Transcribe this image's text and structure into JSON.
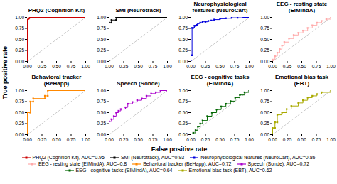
{
  "chart_data": [
    {
      "type": "line",
      "title": "PHQ2 (Cognition Kit)",
      "xlabel": "False positive rate",
      "ylabel": "True positive rate",
      "x": [
        0.0,
        0.0,
        0.02,
        0.04,
        1.0
      ],
      "series": [
        {
          "name": "PHQ2 (Cognition Kit), AUC=0.95",
          "color": "#cc0000",
          "type": "step",
          "marker": "square",
          "values": [
            0.0,
            0.95,
            0.97,
            1.0,
            1.0
          ]
        }
      ],
      "xlim": [
        0,
        1
      ],
      "ylim": [
        0,
        1
      ],
      "xticks": [
        {
          "value": 0,
          "label": "0.00"
        },
        0.25,
        {
          "value": 0.5,
          "label": "0.50"
        },
        0.75,
        {
          "value": 1,
          "label": "1.00"
        }
      ],
      "yticks": [
        {
          "value": 0,
          "label": "0.00"
        },
        0.25,
        {
          "value": 0.5,
          "label": "0.50"
        },
        0.75,
        {
          "value": 1,
          "label": "1.00"
        }
      ],
      "grid": false,
      "legend": "bottom"
    },
    {
      "type": "line",
      "title": "SMI (Neurotrack)",
      "xlabel": "False positive rate",
      "ylabel": "True positive rate",
      "x": [
        0.0,
        0.0,
        0.04,
        0.04,
        0.12,
        0.12,
        1.0
      ],
      "series": [
        {
          "name": "SMI (Neurotrack), AUC=0.93",
          "color": "#000000",
          "type": "step",
          "marker": "square",
          "values": [
            0.0,
            0.88,
            0.88,
            0.94,
            0.94,
            1.0,
            1.0
          ]
        }
      ],
      "xlim": [
        0,
        1
      ],
      "ylim": [
        0,
        1
      ],
      "xticks": [
        {
          "value": 0,
          "label": "0.00"
        },
        0.25,
        {
          "value": 0.5,
          "label": "0.50"
        },
        0.75,
        {
          "value": 1,
          "label": "1.00"
        }
      ],
      "yticks": [
        {
          "value": 0,
          "label": "0.00"
        },
        0.25,
        {
          "value": 0.5,
          "label": "0.50"
        },
        0.75,
        {
          "value": 1,
          "label": "1.00"
        }
      ],
      "grid": false,
      "legend": "bottom"
    },
    {
      "type": "line",
      "title": "Neurophysiological\nfeatures (NeuroCart)",
      "xlabel": "False positive rate",
      "ylabel": "True positive rate",
      "x": [
        0.0,
        0.0,
        0.02,
        0.02,
        0.04,
        0.06,
        0.08,
        0.1,
        0.12,
        0.16,
        0.2,
        0.25,
        0.3,
        0.35,
        0.4,
        0.5,
        0.6,
        0.7,
        0.8,
        0.9,
        1.0
      ],
      "series": [
        {
          "name": "Neurophysiological features (NeuroCart), AUC=0.86",
          "color": "#0000dd",
          "type": "step",
          "marker": "square",
          "values": [
            0.0,
            0.14,
            0.14,
            0.76,
            0.76,
            0.81,
            0.81,
            0.83,
            0.86,
            0.88,
            0.9,
            0.9,
            0.92,
            0.93,
            0.95,
            0.97,
            0.98,
            0.99,
            0.99,
            1.0,
            1.0
          ]
        }
      ],
      "xlim": [
        0,
        1
      ],
      "ylim": [
        0,
        1
      ],
      "xticks": [
        {
          "value": 0,
          "label": "0.00"
        },
        0.25,
        {
          "value": 0.5,
          "label": "0.50"
        },
        0.75,
        {
          "value": 1,
          "label": "1.00"
        }
      ],
      "yticks": [
        {
          "value": 0,
          "label": "0.00"
        },
        0.25,
        {
          "value": 0.5,
          "label": "0.50"
        },
        0.75,
        {
          "value": 1,
          "label": "1.00"
        }
      ],
      "grid": false,
      "legend": "bottom"
    },
    {
      "type": "line",
      "title": "EEG - resting state\n(EIMindA)",
      "xlabel": "False positive rate",
      "ylabel": "True positive rate",
      "x": [
        0.0,
        0.0,
        0.04,
        0.08,
        0.12,
        0.16,
        0.2,
        0.28,
        0.36,
        0.44,
        0.52,
        0.6,
        0.68,
        0.76,
        0.84,
        0.92,
        1.0
      ],
      "series": [
        {
          "name": "EEG - resting state (EIMindA), AUC=0.8",
          "color": "#ffaaaa",
          "type": "step",
          "marker": "square",
          "values": [
            0.0,
            0.04,
            0.12,
            0.2,
            0.28,
            0.36,
            0.44,
            0.52,
            0.6,
            0.65,
            0.7,
            0.76,
            0.82,
            0.88,
            0.92,
            0.96,
            1.0
          ]
        }
      ],
      "xlim": [
        0,
        1
      ],
      "ylim": [
        0,
        1
      ],
      "xticks": [
        {
          "value": 0,
          "label": "0.00"
        },
        0.25,
        {
          "value": 0.5,
          "label": "0.50"
        },
        0.75,
        {
          "value": 1,
          "label": "1.00"
        }
      ],
      "yticks": [
        {
          "value": 0,
          "label": "0.00"
        },
        0.25,
        {
          "value": 0.5,
          "label": "0.50"
        },
        0.75,
        {
          "value": 1,
          "label": "1.00"
        }
      ],
      "grid": false,
      "legend": "bottom"
    },
    {
      "type": "line",
      "title": "Behavioral tracker\n(BeHapp)",
      "xlabel": "False positive rate",
      "ylabel": "True positive rate",
      "x": [
        0.0,
        0.0,
        0.0,
        0.05,
        0.05,
        0.1,
        0.1,
        0.3,
        0.3,
        0.35,
        0.35,
        1.0
      ],
      "series": [
        {
          "name": "Behavioral tracker (BeHapp), AUC=0.72",
          "color": "#ff8800",
          "type": "step",
          "marker": "square",
          "values": [
            0.0,
            0.4,
            0.5,
            0.5,
            0.75,
            0.75,
            0.82,
            0.82,
            0.88,
            0.88,
            1.0,
            1.0
          ]
        }
      ],
      "xlim": [
        0,
        1
      ],
      "ylim": [
        0,
        1
      ],
      "xticks": [
        {
          "value": 0,
          "label": "0.00"
        },
        0.25,
        {
          "value": 0.5,
          "label": "0.50"
        },
        0.75,
        {
          "value": 1,
          "label": "1.00"
        }
      ],
      "yticks": [
        {
          "value": 0,
          "label": "0.00"
        },
        0.25,
        {
          "value": 0.5,
          "label": "0.50"
        },
        0.75,
        {
          "value": 1,
          "label": "1.00"
        }
      ],
      "grid": false,
      "legend": "bottom"
    },
    {
      "type": "line",
      "title": "Speech (Sonde)",
      "xlabel": "False positive rate",
      "ylabel": "True positive rate",
      "x": [
        0.0,
        0.0,
        0.04,
        0.08,
        0.12,
        0.16,
        0.2,
        0.28,
        0.32,
        0.4,
        0.48,
        0.56,
        0.64,
        0.72,
        0.8,
        0.88,
        1.0
      ],
      "series": [
        {
          "name": "Speech (Sonde), AUC=0.72",
          "color": "#aa00cc",
          "type": "step",
          "marker": "square",
          "values": [
            0.0,
            0.3,
            0.35,
            0.42,
            0.5,
            0.54,
            0.58,
            0.62,
            0.7,
            0.74,
            0.78,
            0.82,
            0.88,
            0.93,
            0.96,
            1.0,
            1.0
          ]
        }
      ],
      "xlim": [
        0,
        1
      ],
      "ylim": [
        0,
        1
      ],
      "xticks": [
        {
          "value": 0,
          "label": "0.00"
        },
        0.25,
        {
          "value": 0.5,
          "label": "0.50"
        },
        0.75,
        {
          "value": 1,
          "label": "1.00"
        }
      ],
      "yticks": [
        {
          "value": 0,
          "label": "0.00"
        },
        0.25,
        {
          "value": 0.5,
          "label": "0.50"
        },
        0.75,
        {
          "value": 1,
          "label": "1.00"
        }
      ],
      "grid": false,
      "legend": "bottom"
    },
    {
      "type": "line",
      "title": "EEG - cognitive tasks\n(EIMindA)",
      "xlabel": "False positive rate",
      "ylabel": "True positive rate",
      "x": [
        0.0,
        0.04,
        0.08,
        0.12,
        0.16,
        0.2,
        0.28,
        0.36,
        0.44,
        0.52,
        0.6,
        0.68,
        0.76,
        0.84,
        0.92,
        1.0
      ],
      "series": [
        {
          "name": "EEG - cognitive tasks (EIMindA), AUC=0.64",
          "color": "#006600",
          "type": "step",
          "marker": "square",
          "values": [
            0.0,
            0.04,
            0.1,
            0.18,
            0.25,
            0.32,
            0.42,
            0.5,
            0.57,
            0.64,
            0.7,
            0.76,
            0.84,
            0.9,
            0.96,
            1.0
          ]
        }
      ],
      "xlim": [
        0,
        1
      ],
      "ylim": [
        0,
        1
      ],
      "xticks": [
        {
          "value": 0,
          "label": "0.00"
        },
        0.25,
        {
          "value": 0.5,
          "label": "0.50"
        },
        0.75,
        {
          "value": 1,
          "label": "1.00"
        }
      ],
      "yticks": [
        {
          "value": 0,
          "label": "0.00"
        },
        0.25,
        {
          "value": 0.5,
          "label": "0.50"
        },
        0.75,
        {
          "value": 1,
          "label": "1.00"
        }
      ],
      "grid": false,
      "legend": "bottom"
    },
    {
      "type": "line",
      "title": "Emotional bias task\n(EBT)",
      "xlabel": "False positive rate",
      "ylabel": "True positive rate",
      "x": [
        0.0,
        0.0,
        0.04,
        0.04,
        0.08,
        0.08,
        0.16,
        0.24,
        0.32,
        0.44,
        0.52,
        0.6,
        0.68,
        0.76,
        0.84,
        1.0
      ],
      "series": [
        {
          "name": "Emotional bias task (EBT), AUC=0.62",
          "color": "#aaaa00",
          "type": "step",
          "marker": "square",
          "values": [
            0.0,
            0.15,
            0.15,
            0.28,
            0.28,
            0.45,
            0.5,
            0.58,
            0.65,
            0.72,
            0.78,
            0.84,
            0.88,
            0.92,
            0.96,
            1.0
          ]
        }
      ],
      "xlim": [
        0,
        1
      ],
      "ylim": [
        0,
        1
      ],
      "xticks": [
        {
          "value": 0,
          "label": "0.00"
        },
        0.25,
        {
          "value": 0.5,
          "label": "0.50"
        },
        0.75,
        {
          "value": 1,
          "label": "1.00"
        }
      ],
      "yticks": [
        {
          "value": 0,
          "label": "0.00"
        },
        0.25,
        {
          "value": 0.5,
          "label": "0.50"
        },
        0.75,
        {
          "value": 1,
          "label": "1.00"
        }
      ],
      "grid": false,
      "legend": "bottom"
    }
  ]
}
